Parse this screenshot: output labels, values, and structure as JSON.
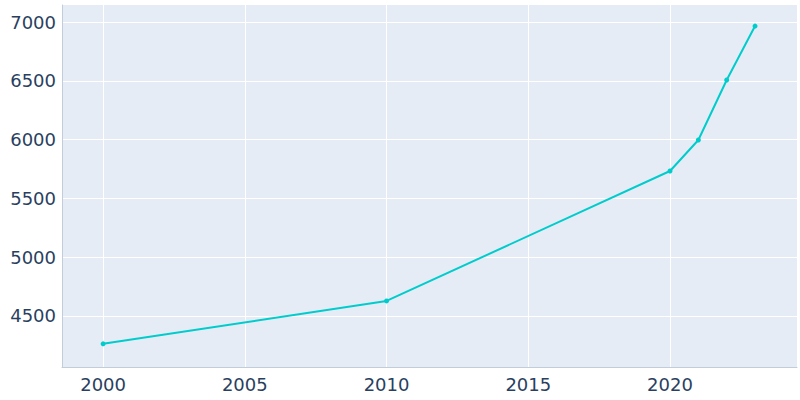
{
  "chart_data": {
    "type": "line",
    "x": [
      2000,
      2010,
      2020,
      2021,
      2022,
      2023
    ],
    "values": [
      4263,
      4628,
      5733,
      5997,
      6507,
      6966
    ],
    "color": "#00cccc",
    "marker": "circle",
    "xlim": [
      1998.55,
      2024.48
    ],
    "xticks": [
      2000,
      2005,
      2010,
      2015,
      2020
    ],
    "ylim": [
      4066,
      7145
    ],
    "yticks": [
      4500,
      5000,
      5500,
      6000,
      6500,
      7000
    ],
    "grid": true
  }
}
